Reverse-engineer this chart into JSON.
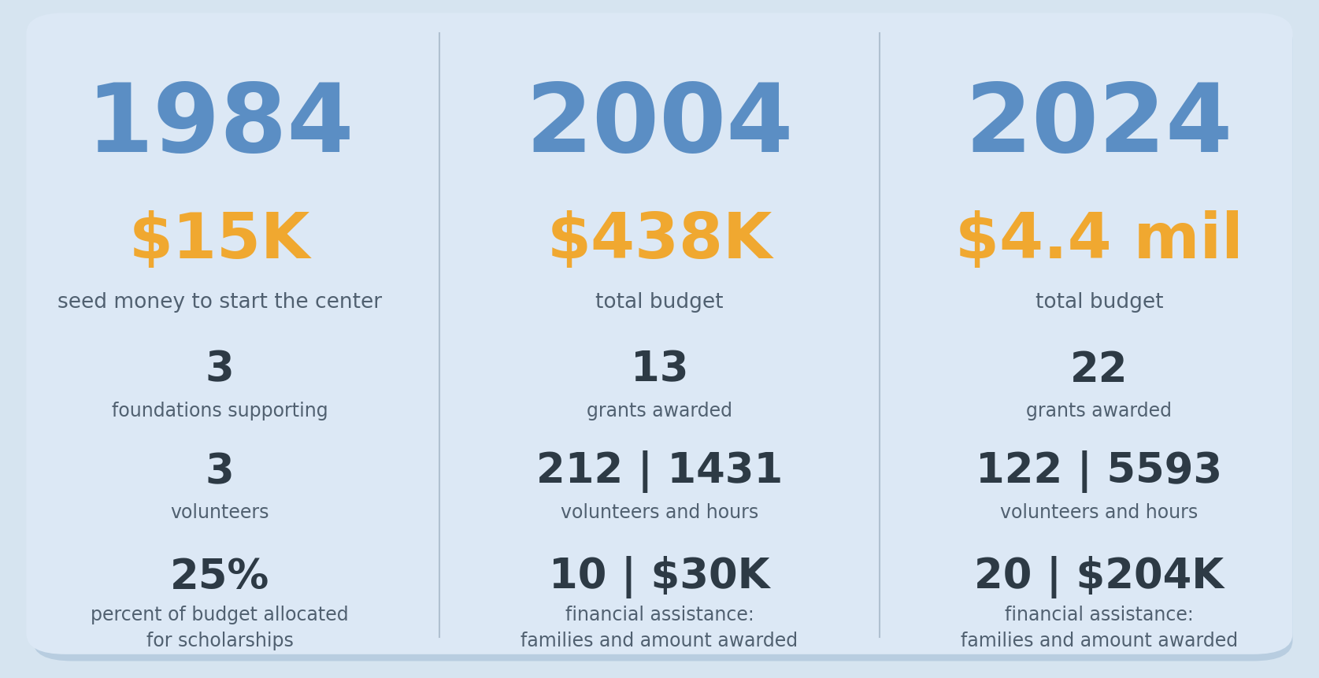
{
  "bg_color": "#d6e4f0",
  "card_color": "#dce8f5",
  "year_color": "#5b8ec4",
  "amount_color": "#f0a830",
  "stat_color": "#2d3a45",
  "label_color": "#506070",
  "divider_color": "#b0c0d0",
  "shadow_color": "#b8cde0",
  "columns": [
    {
      "year": "1984",
      "amount": "$15K",
      "amount_label": "seed money to start the center",
      "stats": [
        {
          "value": "3",
          "label": "foundations supporting"
        },
        {
          "value": "3",
          "label": "volunteers"
        },
        {
          "value": "25%",
          "label": "percent of budget allocated\nfor scholarships"
        }
      ]
    },
    {
      "year": "2004",
      "amount": "$438K",
      "amount_label": "total budget",
      "stats": [
        {
          "value": "13",
          "label": "grants awarded"
        },
        {
          "value": "212 | 1431",
          "label": "volunteers and hours"
        },
        {
          "value": "10 | $30K",
          "label": "financial assistance:\nfamilies and amount awarded"
        }
      ]
    },
    {
      "year": "2024",
      "amount": "$4.4 mil",
      "amount_label": "total budget",
      "stats": [
        {
          "value": "22",
          "label": "grants awarded"
        },
        {
          "value": "122 | 5593",
          "label": "volunteers and hours"
        },
        {
          "value": "20 | $204K",
          "label": "financial assistance:\nfamilies and amount awarded"
        }
      ]
    }
  ],
  "year_fontsize": 88,
  "amount_fontsize": 58,
  "amount_label_fontsize": 19,
  "stat_value_fontsize": 38,
  "stat_label_fontsize": 17,
  "fig_width": 16.75,
  "fig_height": 8.62,
  "dpi": 100
}
